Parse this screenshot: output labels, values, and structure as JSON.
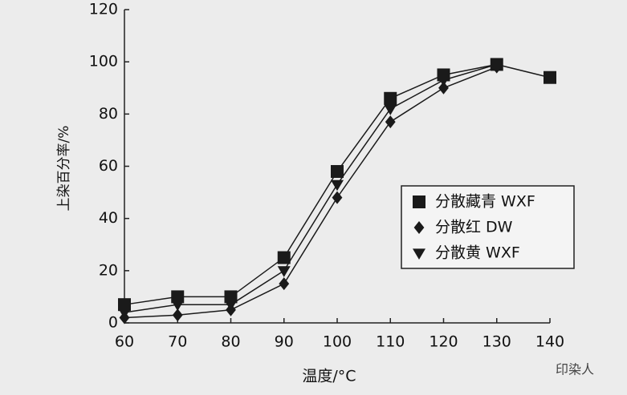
{
  "chart_data": {
    "type": "line",
    "xlabel": "温度/°C",
    "ylabel": "上染百分率/%",
    "x": [
      60,
      70,
      80,
      90,
      100,
      110,
      120,
      130,
      140
    ],
    "xlim": [
      60,
      140
    ],
    "xticks": [
      60,
      70,
      80,
      90,
      100,
      110,
      120,
      130,
      140
    ],
    "ylim": [
      0,
      120
    ],
    "yticks": [
      0,
      20,
      40,
      60,
      80,
      100,
      120
    ],
    "legend": "right",
    "series": [
      {
        "name": "分散藏青 WXF",
        "color": "#1a1a1a",
        "marker": "square",
        "values": [
          7,
          10,
          10,
          25,
          58,
          86,
          95,
          99,
          94
        ]
      },
      {
        "name": "分散红 DW",
        "color": "#1a1a1a",
        "marker": "diamond",
        "values": [
          2,
          3,
          5,
          15,
          48,
          77,
          90,
          98,
          null
        ]
      },
      {
        "name": "分散黄 WXF",
        "color": "#1a1a1a",
        "marker": "triangle-down",
        "values": [
          4,
          7,
          7,
          20,
          53,
          82,
          93,
          99,
          null
        ]
      }
    ],
    "watermark": "印染人"
  }
}
